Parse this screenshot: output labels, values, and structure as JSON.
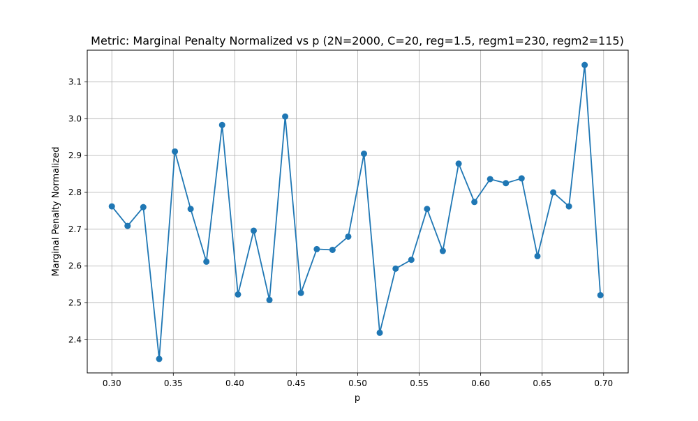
{
  "colors": {
    "series": "#1f77b4",
    "grid": "#b0b0b0",
    "axis": "#000000",
    "background": "#ffffff"
  },
  "chart_data": {
    "type": "line",
    "title": "Metric: Marginal Penalty Normalized vs p (2N=2000, C=20, reg=1.5, regm1=230, regm2=115)",
    "xlabel": "p",
    "ylabel": "Marginal Penalty Normalized",
    "xlim": [
      0.28,
      0.72
    ],
    "ylim": [
      2.31,
      3.186
    ],
    "grid": true,
    "markers": true,
    "x_ticks": [
      0.3,
      0.35,
      0.4,
      0.45,
      0.5,
      0.55,
      0.6,
      0.65,
      0.7
    ],
    "x_tick_labels": [
      "0.30",
      "0.35",
      "0.40",
      "0.45",
      "0.50",
      "0.55",
      "0.60",
      "0.65",
      "0.70"
    ],
    "y_ticks": [
      2.4,
      2.5,
      2.6,
      2.7,
      2.8,
      2.9,
      3.0,
      3.1
    ],
    "y_tick_labels": [
      "2.4",
      "2.5",
      "2.6",
      "2.7",
      "2.8",
      "2.9",
      "3.0",
      "3.1"
    ],
    "series": [
      {
        "x": [
          0.3,
          0.3128,
          0.3256,
          0.3385,
          0.3513,
          0.3641,
          0.3769,
          0.3897,
          0.4026,
          0.4154,
          0.4282,
          0.441,
          0.4538,
          0.4667,
          0.4795,
          0.4923,
          0.5051,
          0.5179,
          0.5308,
          0.5436,
          0.5564,
          0.5692,
          0.5821,
          0.5949,
          0.6077,
          0.6205,
          0.6333,
          0.6462,
          0.659,
          0.6718,
          0.6846,
          0.6974
        ],
        "values": [
          2.762,
          2.709,
          2.76,
          2.348,
          2.911,
          2.755,
          2.612,
          2.983,
          2.523,
          2.696,
          2.508,
          3.006,
          2.527,
          2.646,
          2.644,
          2.68,
          2.905,
          2.419,
          2.593,
          2.617,
          2.755,
          2.641,
          2.878,
          2.774,
          2.836,
          2.825,
          2.838,
          2.627,
          2.8,
          2.762,
          3.146,
          2.521
        ]
      }
    ]
  }
}
